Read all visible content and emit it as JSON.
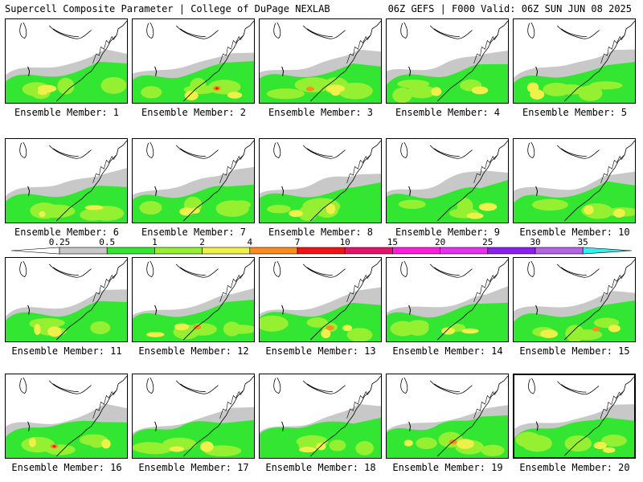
{
  "header": {
    "title": "Supercell Composite Parameter | College of DuPage NEXLAB",
    "run_info": "06Z GEFS | F000 Valid: 06Z SUN JUN 08 2025"
  },
  "members": [
    {
      "label": "Ensemble Member: 1"
    },
    {
      "label": "Ensemble Member: 2"
    },
    {
      "label": "Ensemble Member: 3"
    },
    {
      "label": "Ensemble Member: 4"
    },
    {
      "label": "Ensemble Member: 5"
    },
    {
      "label": "Ensemble Member: 6"
    },
    {
      "label": "Ensemble Member: 7"
    },
    {
      "label": "Ensemble Member: 8"
    },
    {
      "label": "Ensemble Member: 9"
    },
    {
      "label": "Ensemble Member: 10"
    },
    {
      "label": "Ensemble Member: 11"
    },
    {
      "label": "Ensemble Member: 12"
    },
    {
      "label": "Ensemble Member: 13"
    },
    {
      "label": "Ensemble Member: 14"
    },
    {
      "label": "Ensemble Member: 15"
    },
    {
      "label": "Ensemble Member: 16"
    },
    {
      "label": "Ensemble Member: 17"
    },
    {
      "label": "Ensemble Member: 18"
    },
    {
      "label": "Ensemble Member: 19"
    },
    {
      "label": "Ensemble Member: 20"
    }
  ],
  "colorbar": {
    "labels": [
      "0.25",
      "0.5",
      "1",
      "2",
      "4",
      "7",
      "10",
      "15",
      "20",
      "25",
      "30",
      "35"
    ],
    "colors": [
      "#c8c8c8",
      "#32e632",
      "#96f032",
      "#f0f04a",
      "#ff8c1e",
      "#f01414",
      "#e6146e",
      "#ff1edc",
      "#e632f0",
      "#8c1ef0",
      "#b464e6",
      "#32f0f0"
    ]
  },
  "map_colors": {
    "gray": "#c8c8c8",
    "green": "#32e632",
    "lightgreen": "#96f032",
    "yellow": "#f0f04a",
    "orange": "#ff8c1e",
    "red": "#f01414"
  },
  "selected_member": 20
}
